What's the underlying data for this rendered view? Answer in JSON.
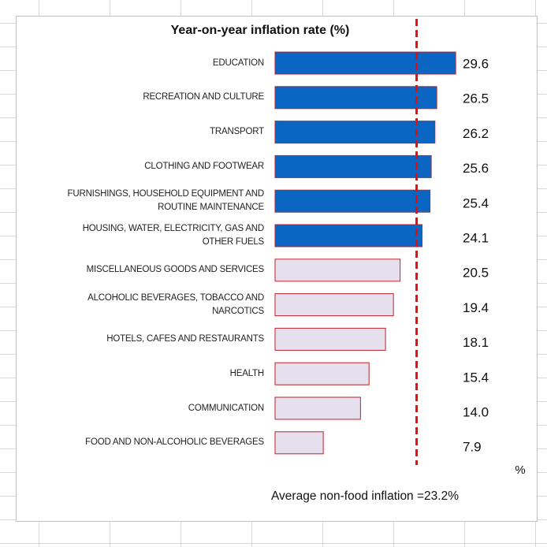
{
  "chart_data": {
    "type": "bar",
    "orientation": "horizontal",
    "title": "Year-on-year inflation rate (%)",
    "categories": [
      "EDUCATION",
      "RECREATION AND CULTURE",
      "TRANSPORT",
      "CLOTHING AND FOOTWEAR",
      "FURNISHINGS, HOUSEHOLD EQUIPMENT AND ROUTINE MAINTENANCE",
      "HOUSING, WATER, ELECTRICITY, GAS AND OTHER FUELS",
      "MISCELLANEOUS GOODS AND SERVICES",
      "ALCOHOLIC BEVERAGES, TOBACCO AND NARCOTICS",
      "HOTELS, CAFES AND RESTAURANTS",
      "HEALTH",
      "COMMUNICATION",
      "FOOD AND NON-ALCOHOLIC BEVERAGES"
    ],
    "values": [
      29.6,
      26.5,
      26.2,
      25.6,
      25.4,
      24.1,
      20.5,
      19.4,
      18.1,
      15.4,
      14.0,
      7.9
    ],
    "value_labels": [
      "29.6",
      "26.5",
      "26.2",
      "25.6",
      "25.4",
      "24.1",
      "20.5",
      "19.4",
      "18.1",
      "15.4",
      "14.0",
      "7.9"
    ],
    "colors": [
      "#0a66c2",
      "#0a66c2",
      "#0a66c2",
      "#0a66c2",
      "#0a66c2",
      "#0a66c2",
      "#e6e0ee",
      "#e6e0ee",
      "#e6e0ee",
      "#e6e0ee",
      "#e6e0ee",
      "#e6e0ee"
    ],
    "bar_edge_color": "#c0202a",
    "xlim": [
      0,
      40
    ],
    "x_label": "%",
    "reference_line": {
      "value": 23.2,
      "color": "#e01010"
    },
    "annotation": "Average non-food inflation =23.2%"
  }
}
